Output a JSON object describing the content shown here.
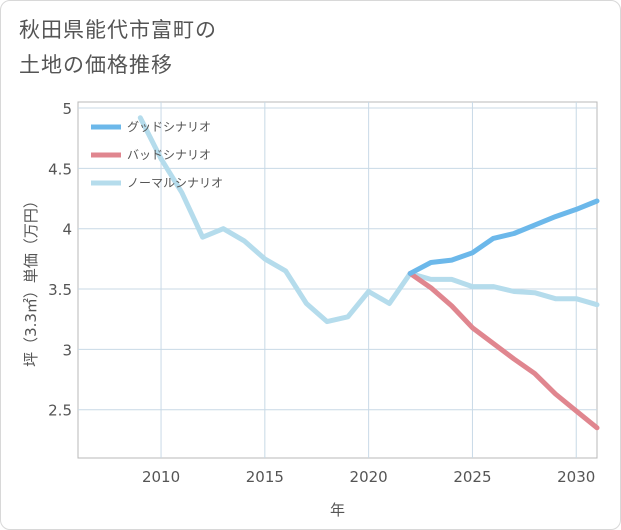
{
  "title_lines": [
    "秋田県能代市富町の",
    "土地の価格推移"
  ],
  "chart_data": {
    "type": "line",
    "xlabel": "年",
    "ylabel": "坪（3.3㎡）単価（万円）",
    "xlim": [
      2006,
      2031
    ],
    "ylim": [
      2.1,
      5.05
    ],
    "xticks": [
      2010,
      2015,
      2020,
      2025,
      2030
    ],
    "yticks": [
      2.5,
      3,
      3.5,
      4,
      4.5,
      5
    ],
    "ytick_labels": [
      "2.5",
      "3",
      "3.5",
      "4",
      "4.5",
      "5"
    ],
    "xtick_labels": [
      "2010",
      "2015",
      "2020",
      "2025",
      "2030"
    ],
    "grid": true,
    "legend_position": "top-left",
    "series": [
      {
        "name": "グッドシナリオ",
        "color": "#6cb8ea",
        "x": [
          2022,
          2023,
          2024,
          2025,
          2026,
          2027,
          2028,
          2029,
          2030,
          2031
        ],
        "y": [
          3.63,
          3.72,
          3.74,
          3.8,
          3.92,
          3.96,
          4.03,
          4.1,
          4.16,
          4.23
        ]
      },
      {
        "name": "バッドシナリオ",
        "color": "#e0868f",
        "x": [
          2022,
          2023,
          2024,
          2025,
          2026,
          2027,
          2028,
          2029,
          2030,
          2031
        ],
        "y": [
          3.63,
          3.51,
          3.36,
          3.18,
          3.05,
          2.92,
          2.8,
          2.63,
          2.49,
          2.35
        ]
      },
      {
        "name": "ノーマルシナリオ",
        "color": "#b5dcec",
        "x": [
          2009,
          2010,
          2011,
          2012,
          2013,
          2014,
          2015,
          2016,
          2017,
          2018,
          2019,
          2020,
          2021,
          2022,
          2023,
          2024,
          2025,
          2026,
          2027,
          2028,
          2029,
          2030,
          2031
        ],
        "y": [
          4.92,
          4.58,
          4.3,
          3.93,
          4.0,
          3.9,
          3.75,
          3.65,
          3.38,
          3.23,
          3.27,
          3.48,
          3.38,
          3.63,
          3.58,
          3.58,
          3.52,
          3.52,
          3.48,
          3.47,
          3.42,
          3.42,
          3.37
        ]
      }
    ]
  }
}
